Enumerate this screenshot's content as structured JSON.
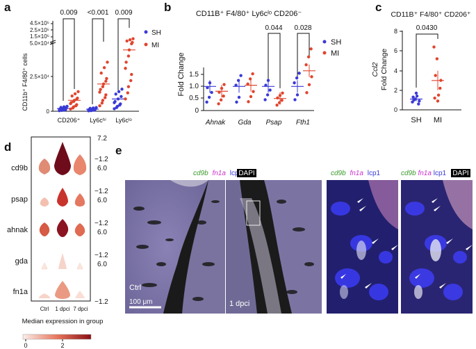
{
  "panel_labels": {
    "a": "a",
    "b": "b",
    "c": "c",
    "d": "d",
    "e": "e"
  },
  "colors": {
    "sh": "#3a3ad6",
    "mi": "#e0452e",
    "axis": "#111111"
  },
  "legend": {
    "sh": "SH",
    "mi": "MI"
  },
  "panel_a": {
    "ylabel": "CD11b⁺ F4/80⁺ cells",
    "y_ticks_low": [
      "0",
      "2.5×10⁴",
      "5.0×10⁴"
    ],
    "y_ticks_high": [
      "5.0×10⁴",
      "1.5×10⁵",
      "2.5×10⁵",
      "4.5×10⁵"
    ],
    "categories": [
      "CD206⁺",
      "Ly6cʰⁱ",
      "Ly6cˡᵒ"
    ],
    "pvalues": [
      "0.009",
      "<0.001",
      "0.009"
    ]
  },
  "panel_b": {
    "title": "CD11B⁺ F4/80⁺ Ly6cˡᵒ CD206⁻",
    "ylabel": "Fold Change",
    "y_ticks": [
      "0",
      "0.5",
      "1.0",
      "1.5"
    ],
    "categories": [
      "Ahnak",
      "Gda",
      "Psap",
      "Fth1"
    ],
    "pvalues": [
      "0.044",
      "0.028"
    ]
  },
  "panel_c": {
    "title": "CD11B⁺ F4/80⁺ CD206⁺",
    "ylabel_gene": "Ccl2",
    "ylabel": "Fold Change",
    "y_ticks": [
      "0",
      "2",
      "4",
      "6",
      "8"
    ],
    "categories": [
      "SH",
      "MI"
    ],
    "pvalue": "0.0430"
  },
  "panel_d": {
    "rows": [
      "cd9b",
      "psap",
      "ahnak",
      "gda",
      "fn1a"
    ],
    "columns": [
      "Ctrl",
      "1 dpci",
      "7 dpci"
    ],
    "axis_top": "7.2",
    "axis_mid": "6.0",
    "axis_bot": "−1.2",
    "colorbar_label": "Median expression in group",
    "colorbar_ticks": [
      "0",
      "2"
    ]
  },
  "panel_e": {
    "header1": [
      "cd9b",
      "fn1a",
      "lcp1",
      "DAPI"
    ],
    "header2": [
      "cd9b",
      "fn1a",
      "lcp1"
    ],
    "header3": [
      "cd9b",
      "fn1a",
      "lcp1",
      "DAPI"
    ],
    "ctrl_label": "Ctrl",
    "dpci_label": "1 dpci",
    "scale_bar": "100 μm"
  },
  "chart_data": [
    {
      "type": "scatter",
      "title": "",
      "ylabel": "CD11b⁺ F4/80⁺ cells",
      "categories": [
        "CD206⁺",
        "Ly6cʰⁱ",
        "Ly6cˡᵒ"
      ],
      "series": [
        {
          "name": "SH",
          "means": [
            2000,
            1500,
            9000
          ]
        },
        {
          "name": "MI",
          "means": [
            8000,
            20000,
            45000
          ]
        }
      ],
      "pvalues": [
        "0.009",
        "<0.001",
        "0.009"
      ]
    },
    {
      "type": "scatter",
      "title": "CD11B⁺ F4/80⁺ Ly6cˡᵒ CD206⁻",
      "ylabel": "Fold Change",
      "categories": [
        "Ahnak",
        "Gda",
        "Psap",
        "Fth1"
      ],
      "series": [
        {
          "name": "SH",
          "means": [
            1.0,
            1.0,
            1.0,
            1.0
          ]
        },
        {
          "name": "MI",
          "means": [
            0.8,
            1.05,
            0.5,
            1.65
          ]
        }
      ],
      "ylim": [
        0,
        2.2
      ],
      "pvalues": [
        "",
        "",
        "0.044",
        "0.028"
      ]
    },
    {
      "type": "scatter",
      "title": "CD11B⁺ F4/80⁺ CD206⁺",
      "ylabel": "Ccl2 Fold Change",
      "categories": [
        "SH",
        "MI"
      ],
      "series": [
        {
          "name": "SH",
          "values": [
            0.8,
            1.1,
            0.6,
            1.3,
            1.7,
            0.9,
            1.0,
            1.4
          ]
        },
        {
          "name": "MI",
          "values": [
            6.4,
            5.2,
            2.2,
            1.2,
            0.9,
            3.0,
            3.5,
            1.5
          ]
        }
      ],
      "ylim": [
        0,
        8
      ],
      "pvalues": [
        "0.0430"
      ]
    }
  ]
}
